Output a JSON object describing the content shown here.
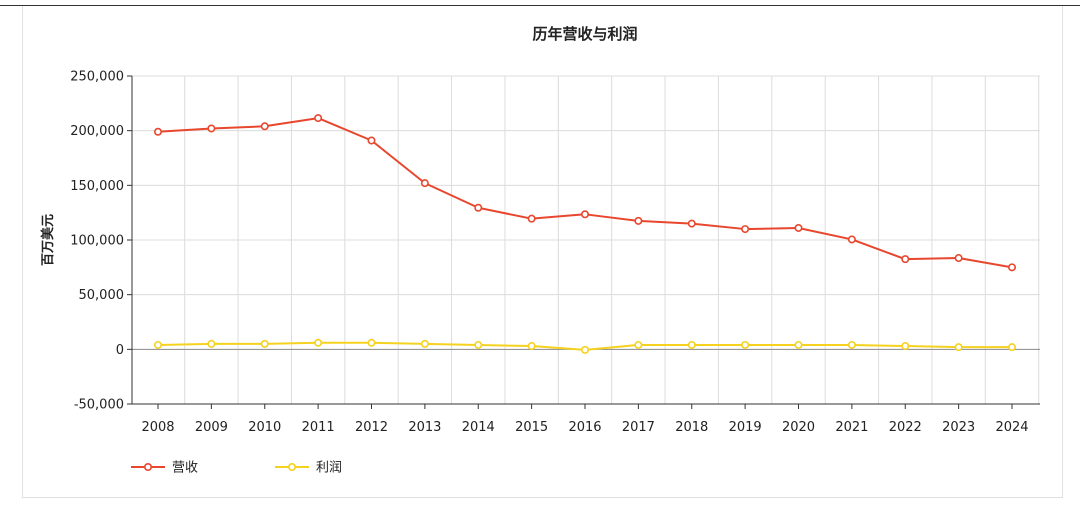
{
  "chart_data": {
    "type": "line",
    "title": "历年营收与利润",
    "xlabel": "",
    "ylabel": "百万美元",
    "categories": [
      "2008",
      "2009",
      "2010",
      "2011",
      "2012",
      "2013",
      "2014",
      "2015",
      "2016",
      "2017",
      "2018",
      "2019",
      "2020",
      "2021",
      "2022",
      "2023",
      "2024"
    ],
    "ylim": [
      -50000,
      250000
    ],
    "yticks": [
      -50000,
      0,
      50000,
      100000,
      150000,
      200000,
      250000
    ],
    "ytick_labels": [
      "-50,000",
      "0",
      "50,000",
      "100,000",
      "150,000",
      "200,000",
      "250,000"
    ],
    "grid": true,
    "legend_position": "bottom-left",
    "series": [
      {
        "name": "营收",
        "color": "#e8472e",
        "values": [
          199000,
          202000,
          204000,
          211500,
          191000,
          152000,
          129500,
          119500,
          123500,
          117500,
          115000,
          110000,
          111000,
          100500,
          82500,
          83500,
          75000
        ]
      },
      {
        "name": "利润",
        "color": "#f5d21e",
        "values": [
          4000,
          5000,
          5000,
          6000,
          6000,
          5000,
          4000,
          3000,
          -500,
          4000,
          4000,
          4000,
          4000,
          4000,
          3000,
          2000,
          2000
        ]
      }
    ]
  }
}
